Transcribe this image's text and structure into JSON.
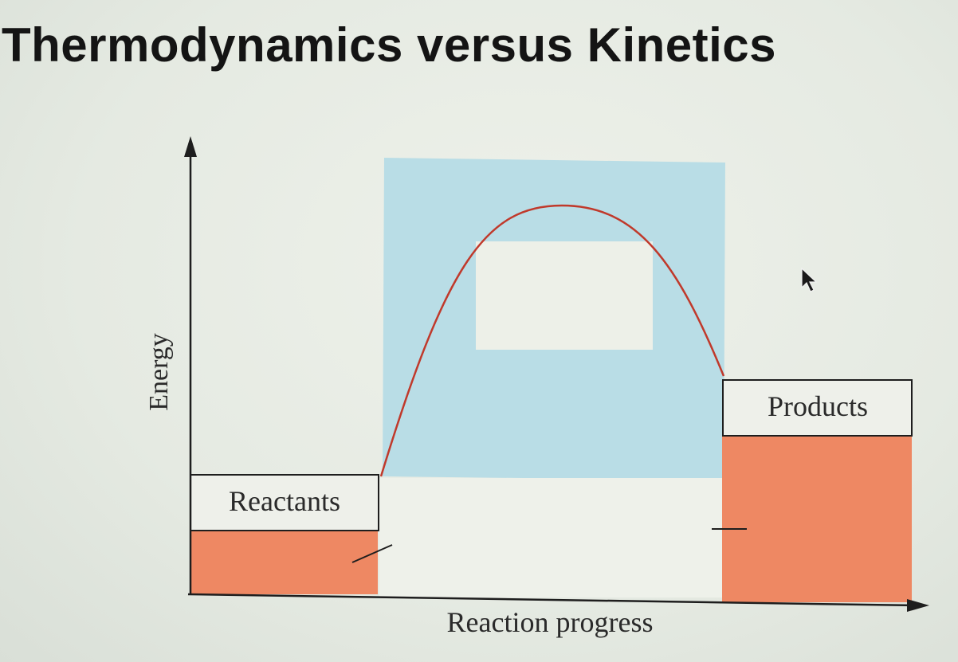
{
  "slide": {
    "title": "Thermodynamics versus Kinetics"
  },
  "diagram": {
    "y_axis_label": "Energy",
    "x_axis_label": "Reaction progress",
    "reactants_label": "Reactants",
    "products_label": "Products",
    "colors": {
      "activation_region": "#b9dde6",
      "energy_fill": "#ee8863",
      "curve": "#c0392b",
      "axis": "#1e1e1e",
      "blank_box": "#edf0e8"
    }
  },
  "pointer": {
    "icon": "mouse-cursor-icon"
  }
}
